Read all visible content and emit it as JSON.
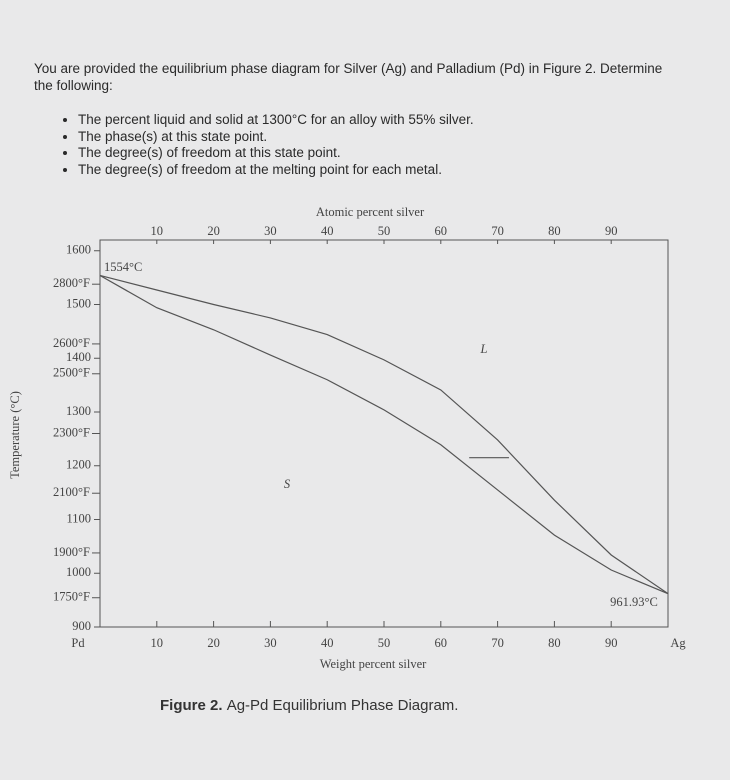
{
  "intro": "You are provided the equilibrium phase diagram for Silver (Ag) and Palladium (Pd) in Figure 2. Determine the following:",
  "questions": [
    "The percent liquid and solid at 1300°C for an alloy with 55% silver.",
    "The phase(s) at this state point.",
    "The degree(s) of freedom at this state point.",
    "The degree(s) of freedom at the melting point for each metal."
  ],
  "caption": {
    "label": "Figure 2.",
    "text": "Ag-Pd Equilibrium Phase Diagram."
  },
  "chart_data": {
    "type": "line",
    "xlabel": "Weight percent silver",
    "x2label": "Atomic percent silver",
    "ylabel": "Temperature (°C)",
    "xlim": [
      0,
      100
    ],
    "xticks": [
      {
        "value": 0,
        "label": "Pd"
      },
      10,
      20,
      30,
      40,
      50,
      60,
      70,
      80,
      90,
      {
        "value": 100,
        "label": "Ag"
      }
    ],
    "x2lim": [
      0,
      100
    ],
    "x2ticks": [
      10,
      20,
      30,
      40,
      50,
      60,
      70,
      80,
      90
    ],
    "ylim": [
      900,
      1620
    ],
    "yticks": [
      900,
      1000,
      1100,
      1200,
      1300,
      1400,
      1500,
      1600
    ],
    "y2lim": [
      1652,
      2948
    ],
    "y2ticks": [
      {
        "value": 1750,
        "label": "1750°F"
      },
      {
        "value": 1900,
        "label": "1900°F"
      },
      {
        "value": 2100,
        "label": "2100°F"
      },
      {
        "value": 2300,
        "label": "2300°F"
      },
      {
        "value": 2500,
        "label": "2500°F"
      },
      {
        "value": 2600,
        "label": "2600°F"
      },
      {
        "value": 2800,
        "label": "2800°F"
      }
    ],
    "annotations": [
      "1554°C",
      "L",
      "S",
      "961.93°C"
    ],
    "series": [
      {
        "color": "#555555",
        "x": [
          0,
          10,
          20,
          30,
          40,
          50,
          60,
          70,
          80,
          90,
          100
        ],
        "values": [
          1554,
          1527,
          1500,
          1475,
          1444,
          1397,
          1341,
          1248,
          1136,
          1034,
          962
        ]
      },
      {
        "color": "#555555",
        "x": [
          0,
          10,
          20,
          30,
          40,
          50,
          60,
          70,
          80,
          90,
          100
        ],
        "values": [
          1554,
          1494,
          1453,
          1406,
          1360,
          1304,
          1239,
          1155,
          1071,
          1006,
          962
        ]
      },
      {
        "color": "#555555",
        "x": [
          65,
          72
        ],
        "values": [
          1215,
          1215
        ]
      }
    ]
  }
}
